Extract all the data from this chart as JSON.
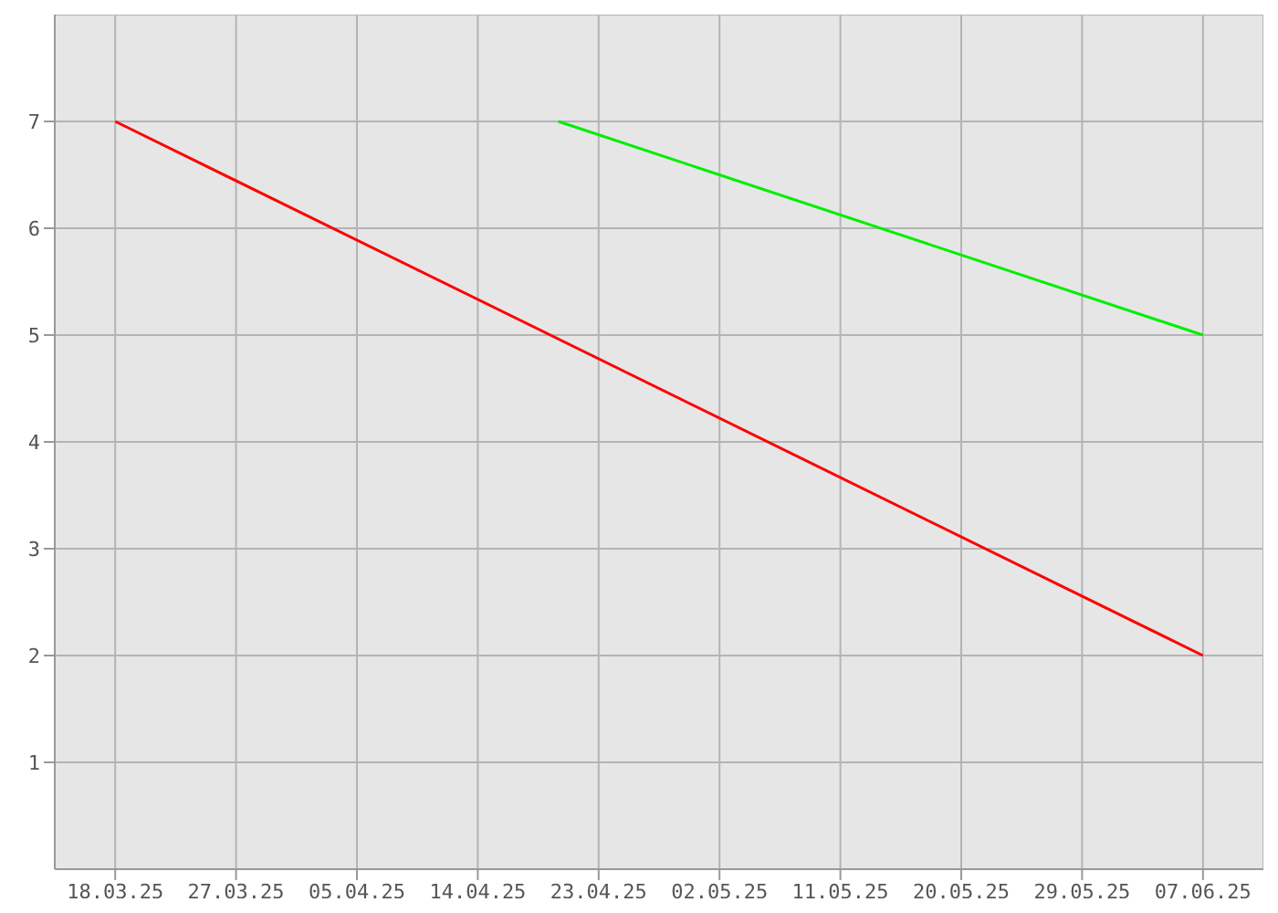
{
  "chart_data": {
    "type": "line",
    "series": [
      {
        "color": "#ff0000",
        "x": [
          "--03-18",
          "--06-07"
        ],
        "values": [
          7,
          2
        ]
      },
      {
        "color": "#00ee00",
        "x": [
          "--04-20",
          "--06-07"
        ],
        "values": [
          7,
          5
        ]
      }
    ],
    "xlim": [
      "--03-13T12:00",
      "--06-11T12:00"
    ],
    "xticks": [
      {
        "value": "--03-18",
        "label": "18.03.25"
      },
      {
        "value": "--03-27",
        "label": "27.03.25"
      },
      {
        "value": "--04-05",
        "label": "05.04.25"
      },
      {
        "value": "--04-14",
        "label": "14.04.25"
      },
      {
        "value": "--04-23",
        "label": "23.04.25"
      },
      {
        "value": "--05-02",
        "label": "02.05.25"
      },
      {
        "value": "--05-11",
        "label": "11.05.25"
      },
      {
        "value": "--05-20",
        "label": "20.05.25"
      },
      {
        "value": "--05-29",
        "label": "29.05.25"
      },
      {
        "value": "--06-07",
        "label": "07.06.25"
      }
    ],
    "ylim": [
      0,
      8
    ],
    "yticks": [
      1,
      2,
      3,
      4,
      5,
      6,
      7
    ],
    "grid": true,
    "marker": "none",
    "line_style": "solid"
  }
}
